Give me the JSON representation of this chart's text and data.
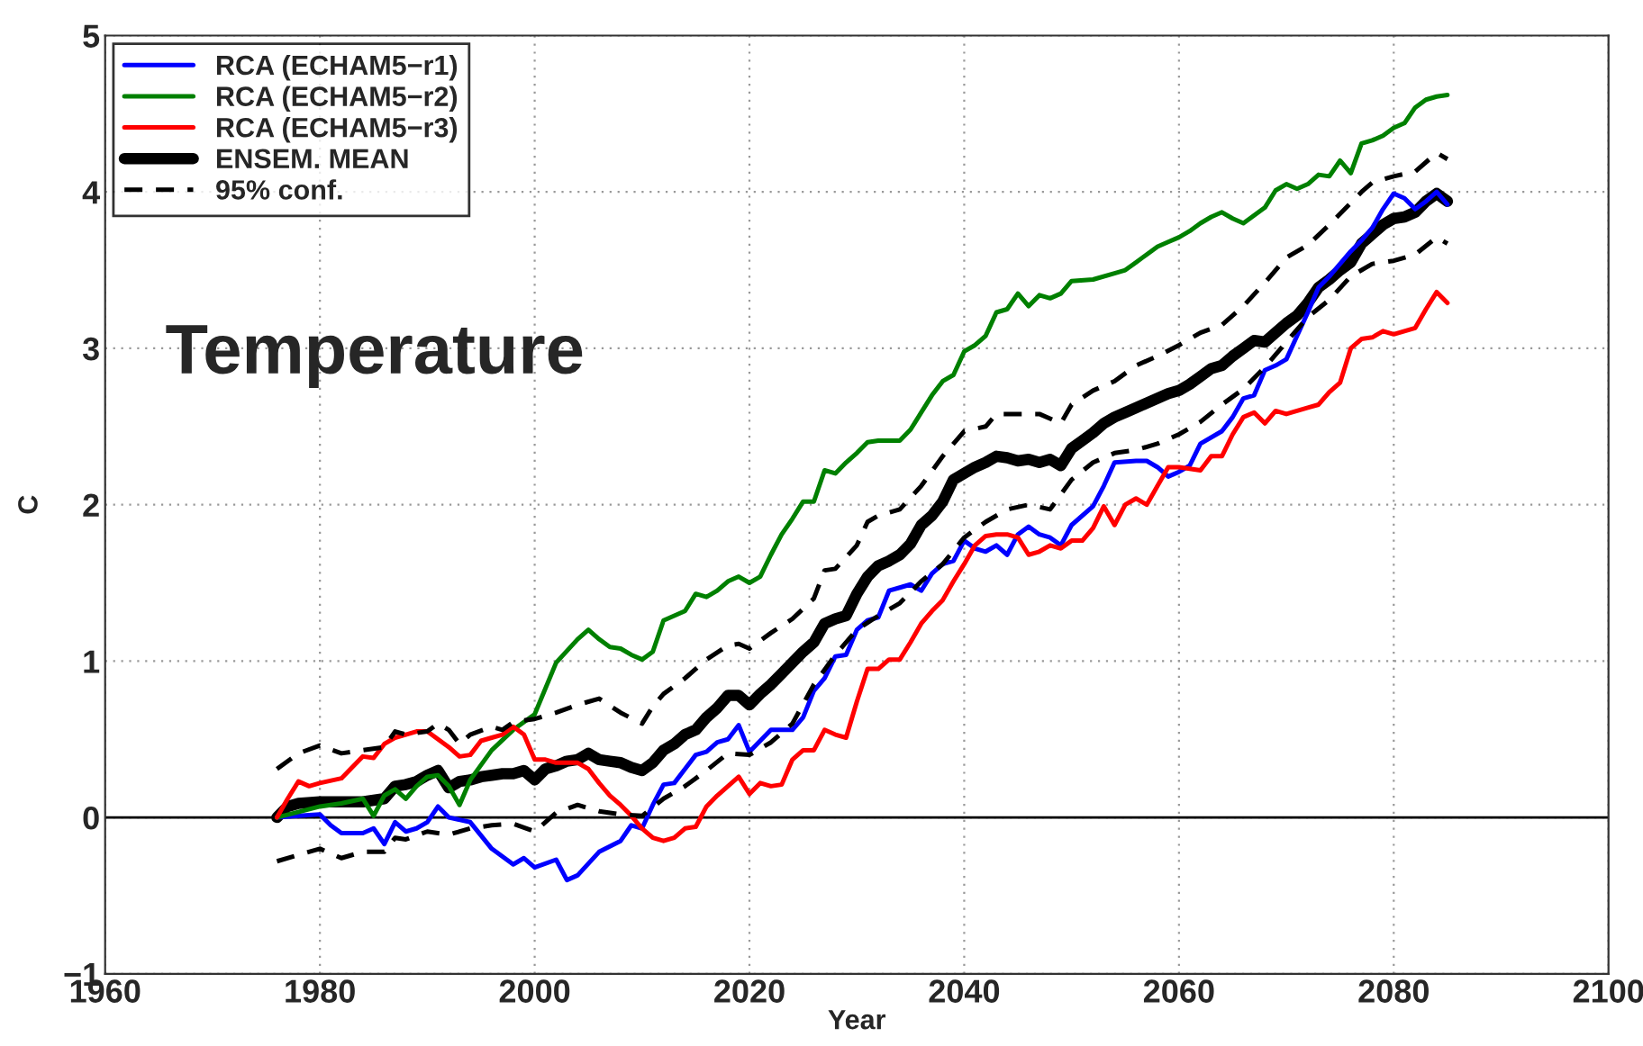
{
  "chart_data": {
    "type": "line",
    "xlabel": "Year",
    "ylabel": "C",
    "annotations": [
      "Temperature"
    ],
    "xlim": [
      1960,
      2100
    ],
    "xticks": [
      1960,
      1980,
      2000,
      2020,
      2040,
      2060,
      2080,
      2100
    ],
    "ylim": [
      -1,
      5
    ],
    "yticks": [
      -1,
      0,
      1,
      2,
      3,
      4,
      5
    ],
    "grid": true,
    "legend": "top left",
    "line_style": "solid",
    "marker": "none",
    "ref_lines": [
      {
        "axis": "y",
        "value": 0,
        "color": "#000000",
        "line_style": "solid"
      }
    ],
    "series": [
      {
        "name": "RCA (ECHAM5−r1)",
        "color": "#0000ff",
        "x": [
          1976,
          1978,
          1980,
          1981,
          1982,
          1984,
          1985,
          1986,
          1987,
          1988,
          1989,
          1990,
          1991,
          1992,
          1994,
          1996,
          1998,
          1999,
          2000,
          2002,
          2003,
          2004,
          2006,
          2008,
          2009,
          2010,
          2011,
          2012,
          2013,
          2014,
          2015,
          2016,
          2017,
          2018,
          2019,
          2020,
          2021,
          2022,
          2024,
          2025,
          2026,
          2027,
          2028,
          2029,
          2030,
          2031,
          2032,
          2033,
          2034,
          2035,
          2036,
          2037,
          2038,
          2039,
          2040,
          2041,
          2042,
          2043,
          2044,
          2045,
          2046,
          2047,
          2048,
          2049,
          2050,
          2052,
          2053,
          2054,
          2056,
          2057,
          2058,
          2059,
          2060,
          2061,
          2062,
          2064,
          2065,
          2066,
          2067,
          2068,
          2069,
          2070,
          2071,
          2072,
          2073,
          2074,
          2075,
          2076,
          2077,
          2078,
          2079,
          2080,
          2081,
          2082,
          2083,
          2084,
          2085
        ],
        "values": [
          0,
          0.01,
          0.02,
          -0.05,
          -0.1,
          -0.1,
          -0.07,
          -0.17,
          -0.03,
          -0.09,
          -0.07,
          -0.03,
          0.07,
          0,
          -0.03,
          -0.2,
          -0.3,
          -0.26,
          -0.32,
          -0.27,
          -0.4,
          -0.37,
          -0.22,
          -0.15,
          -0.05,
          -0.07,
          0.08,
          0.21,
          0.22,
          0.31,
          0.4,
          0.42,
          0.48,
          0.5,
          0.59,
          0.42,
          0.49,
          0.56,
          0.56,
          0.64,
          0.81,
          0.89,
          1.03,
          1.04,
          1.2,
          1.26,
          1.28,
          1.45,
          1.47,
          1.49,
          1.45,
          1.56,
          1.62,
          1.64,
          1.77,
          1.72,
          1.7,
          1.74,
          1.68,
          1.81,
          1.86,
          1.81,
          1.79,
          1.74,
          1.87,
          1.99,
          2.12,
          2.27,
          2.28,
          2.28,
          2.24,
          2.18,
          2.21,
          2.25,
          2.39,
          2.47,
          2.56,
          2.68,
          2.7,
          2.86,
          2.89,
          2.93,
          3.08,
          3.23,
          3.39,
          3.46,
          3.54,
          3.62,
          3.69,
          3.77,
          3.89,
          3.99,
          3.96,
          3.89,
          3.94,
          4.0,
          3.92
        ]
      },
      {
        "name": "RCA (ECHAM5−r2)",
        "color": "#008000",
        "x": [
          1976,
          1980,
          1982,
          1984,
          1985,
          1986,
          1987,
          1988,
          1989,
          1990,
          1991,
          1992,
          1993,
          1994,
          1996,
          1998,
          2000,
          2002,
          2004,
          2005,
          2006,
          2007,
          2008,
          2009,
          2010,
          2011,
          2012,
          2013,
          2014,
          2015,
          2016,
          2017,
          2018,
          2019,
          2020,
          2021,
          2022,
          2023,
          2024,
          2025,
          2026,
          2027,
          2028,
          2029,
          2030,
          2031,
          2032,
          2033,
          2034,
          2035,
          2036,
          2037,
          2038,
          2039,
          2040,
          2041,
          2042,
          2043,
          2044,
          2045,
          2046,
          2047,
          2048,
          2049,
          2050,
          2052,
          2054,
          2055,
          2056,
          2057,
          2058,
          2059,
          2060,
          2061,
          2062,
          2063,
          2064,
          2065,
          2066,
          2067,
          2068,
          2069,
          2070,
          2071,
          2072,
          2073,
          2074,
          2075,
          2076,
          2077,
          2078,
          2079,
          2080,
          2081,
          2082,
          2083,
          2084,
          2085
        ],
        "values": [
          0,
          0.07,
          0.09,
          0.12,
          0.01,
          0.14,
          0.18,
          0.12,
          0.2,
          0.26,
          0.27,
          0.2,
          0.08,
          0.24,
          0.43,
          0.56,
          0.66,
          0.99,
          1.14,
          1.2,
          1.14,
          1.09,
          1.08,
          1.04,
          1.01,
          1.06,
          1.26,
          1.29,
          1.32,
          1.43,
          1.41,
          1.45,
          1.51,
          1.54,
          1.5,
          1.54,
          1.68,
          1.81,
          1.91,
          2.02,
          2.02,
          2.22,
          2.2,
          2.27,
          2.33,
          2.4,
          2.41,
          2.41,
          2.41,
          2.48,
          2.59,
          2.7,
          2.79,
          2.83,
          2.98,
          3.02,
          3.08,
          3.23,
          3.25,
          3.35,
          3.27,
          3.34,
          3.32,
          3.35,
          3.43,
          3.44,
          3.48,
          3.5,
          3.55,
          3.6,
          3.65,
          3.68,
          3.71,
          3.75,
          3.8,
          3.84,
          3.87,
          3.83,
          3.8,
          3.85,
          3.9,
          4.01,
          4.05,
          4.02,
          4.05,
          4.11,
          4.1,
          4.2,
          4.12,
          4.31,
          4.33,
          4.36,
          4.41,
          4.44,
          4.54,
          4.59,
          4.61,
          4.62
        ]
      },
      {
        "name": "RCA (ECHAM5−r3)",
        "color": "#ff0000",
        "x": [
          1976,
          1977,
          1978,
          1979,
          1980,
          1982,
          1984,
          1985,
          1986,
          1987,
          1988,
          1989,
          1990,
          1991,
          1992,
          1993,
          1994,
          1995,
          1996,
          1997,
          1998,
          1999,
          2000,
          2001,
          2002,
          2003,
          2004,
          2005,
          2006,
          2007,
          2008,
          2009,
          2010,
          2011,
          2012,
          2013,
          2014,
          2015,
          2016,
          2017,
          2018,
          2019,
          2020,
          2021,
          2022,
          2023,
          2024,
          2025,
          2026,
          2027,
          2028,
          2029,
          2030,
          2031,
          2032,
          2033,
          2034,
          2035,
          2036,
          2037,
          2038,
          2039,
          2040,
          2041,
          2042,
          2043,
          2044,
          2045,
          2046,
          2047,
          2048,
          2049,
          2050,
          2051,
          2052,
          2053,
          2054,
          2055,
          2056,
          2057,
          2058,
          2059,
          2060,
          2061,
          2062,
          2063,
          2064,
          2065,
          2066,
          2067,
          2068,
          2069,
          2070,
          2071,
          2072,
          2073,
          2074,
          2075,
          2076,
          2077,
          2078,
          2079,
          2080,
          2081,
          2082,
          2083,
          2084,
          2085
        ],
        "values": [
          0,
          0.12,
          0.23,
          0.2,
          0.22,
          0.25,
          0.39,
          0.38,
          0.47,
          0.51,
          0.53,
          0.55,
          0.55,
          0.5,
          0.45,
          0.39,
          0.4,
          0.49,
          0.51,
          0.53,
          0.58,
          0.53,
          0.37,
          0.37,
          0.35,
          0.35,
          0.35,
          0.31,
          0.22,
          0.14,
          0.08,
          0.01,
          -0.07,
          -0.13,
          -0.15,
          -0.13,
          -0.07,
          -0.06,
          0.07,
          0.14,
          0.2,
          0.26,
          0.15,
          0.22,
          0.2,
          0.21,
          0.37,
          0.43,
          0.43,
          0.56,
          0.53,
          0.51,
          0.74,
          0.95,
          0.95,
          1.01,
          1.01,
          1.12,
          1.24,
          1.32,
          1.39,
          1.51,
          1.62,
          1.74,
          1.8,
          1.81,
          1.81,
          1.79,
          1.68,
          1.7,
          1.74,
          1.72,
          1.77,
          1.77,
          1.85,
          1.99,
          1.87,
          2.0,
          2.04,
          2.0,
          2.12,
          2.24,
          2.24,
          2.23,
          2.22,
          2.31,
          2.31,
          2.45,
          2.56,
          2.59,
          2.52,
          2.6,
          2.58,
          2.6,
          2.62,
          2.64,
          2.72,
          2.78,
          3.0,
          3.06,
          3.07,
          3.11,
          3.09,
          3.11,
          3.13,
          3.25,
          3.36,
          3.29
        ]
      },
      {
        "name": "ENSEM. MEAN",
        "color": "#000000",
        "x": [
          1976,
          1977,
          1978,
          1980,
          1982,
          1984,
          1986,
          1987,
          1988,
          1989,
          1990,
          1991,
          1992,
          1993,
          1994,
          1995,
          1996,
          1997,
          1998,
          1999,
          2000,
          2001,
          2002,
          2003,
          2004,
          2005,
          2006,
          2007,
          2008,
          2009,
          2010,
          2011,
          2012,
          2013,
          2014,
          2015,
          2016,
          2017,
          2018,
          2019,
          2020,
          2021,
          2022,
          2023,
          2024,
          2025,
          2026,
          2027,
          2028,
          2029,
          2030,
          2031,
          2032,
          2033,
          2034,
          2035,
          2036,
          2037,
          2038,
          2039,
          2040,
          2041,
          2042,
          2043,
          2044,
          2045,
          2046,
          2047,
          2048,
          2049,
          2050,
          2051,
          2052,
          2053,
          2054,
          2055,
          2056,
          2057,
          2058,
          2059,
          2060,
          2061,
          2062,
          2063,
          2064,
          2065,
          2066,
          2067,
          2068,
          2069,
          2070,
          2071,
          2072,
          2073,
          2074,
          2075,
          2076,
          2077,
          2078,
          2079,
          2080,
          2081,
          2082,
          2083,
          2084,
          2085
        ],
        "values": [
          0,
          0.07,
          0.09,
          0.1,
          0.1,
          0.1,
          0.12,
          0.2,
          0.21,
          0.23,
          0.27,
          0.3,
          0.19,
          0.23,
          0.24,
          0.26,
          0.27,
          0.28,
          0.28,
          0.3,
          0.24,
          0.31,
          0.33,
          0.36,
          0.37,
          0.41,
          0.37,
          0.36,
          0.35,
          0.32,
          0.3,
          0.35,
          0.43,
          0.47,
          0.53,
          0.56,
          0.64,
          0.7,
          0.78,
          0.78,
          0.72,
          0.79,
          0.85,
          0.92,
          0.99,
          1.06,
          1.12,
          1.24,
          1.27,
          1.29,
          1.43,
          1.54,
          1.61,
          1.64,
          1.68,
          1.75,
          1.87,
          1.93,
          2.02,
          2.16,
          2.2,
          2.24,
          2.27,
          2.31,
          2.3,
          2.28,
          2.29,
          2.27,
          2.29,
          2.25,
          2.36,
          2.41,
          2.46,
          2.52,
          2.56,
          2.59,
          2.62,
          2.65,
          2.68,
          2.71,
          2.73,
          2.77,
          2.82,
          2.87,
          2.89,
          2.95,
          3.0,
          3.05,
          3.04,
          3.1,
          3.16,
          3.21,
          3.29,
          3.39,
          3.44,
          3.5,
          3.55,
          3.67,
          3.73,
          3.79,
          3.83,
          3.84,
          3.87,
          3.94,
          3.99,
          3.94
        ]
      },
      {
        "name": "95% conf.",
        "color": "#000000",
        "line_style": "dashed",
        "x": [
          1976,
          1978,
          1980,
          1982,
          1984,
          1986,
          1987,
          1988,
          1990,
          1991,
          1992,
          1993,
          1994,
          1996,
          1997,
          1998,
          2000,
          2002,
          2004,
          2006,
          2008,
          2010,
          2011,
          2012,
          2014,
          2016,
          2018,
          2019,
          2020,
          2022,
          2024,
          2026,
          2027,
          2028,
          2030,
          2031,
          2032,
          2034,
          2036,
          2038,
          2040,
          2042,
          2043,
          2045,
          2047,
          2049,
          2050,
          2052,
          2054,
          2056,
          2058,
          2060,
          2062,
          2064,
          2066,
          2068,
          2070,
          2072,
          2074,
          2076,
          2077,
          2078,
          2080,
          2082,
          2084,
          2085
        ],
        "values": [
          0.31,
          0.41,
          0.46,
          0.41,
          0.43,
          0.45,
          0.55,
          0.53,
          0.55,
          0.6,
          0.56,
          0.47,
          0.53,
          0.58,
          0.56,
          0.61,
          0.63,
          0.67,
          0.72,
          0.76,
          0.67,
          0.6,
          0.71,
          0.79,
          0.89,
          1.01,
          1.1,
          1.11,
          1.08,
          1.18,
          1.27,
          1.4,
          1.58,
          1.59,
          1.74,
          1.89,
          1.93,
          1.97,
          2.12,
          2.31,
          2.47,
          2.5,
          2.58,
          2.58,
          2.58,
          2.52,
          2.64,
          2.73,
          2.79,
          2.89,
          2.95,
          3.02,
          3.1,
          3.15,
          3.27,
          3.42,
          3.58,
          3.66,
          3.79,
          3.93,
          4.0,
          4.06,
          4.1,
          4.13,
          4.25,
          4.21
        ]
      },
      {
        "color": "#000000",
        "line_style": "dashed",
        "x": [
          1976,
          1978,
          1980,
          1982,
          1984,
          1986,
          1987,
          1988,
          1990,
          1992,
          1994,
          1996,
          1998,
          2000,
          2002,
          2004,
          2006,
          2008,
          2010,
          2012,
          2014,
          2016,
          2018,
          2020,
          2022,
          2024,
          2026,
          2028,
          2030,
          2032,
          2034,
          2036,
          2038,
          2040,
          2042,
          2044,
          2046,
          2048,
          2050,
          2052,
          2054,
          2056,
          2058,
          2060,
          2062,
          2064,
          2066,
          2068,
          2070,
          2072,
          2074,
          2076,
          2078,
          2080,
          2082,
          2084,
          2085
        ],
        "values": [
          -0.28,
          -0.24,
          -0.2,
          -0.26,
          -0.22,
          -0.22,
          -0.13,
          -0.14,
          -0.09,
          -0.11,
          -0.07,
          -0.05,
          -0.04,
          -0.09,
          0.03,
          0.08,
          0.04,
          0.02,
          0.01,
          0.12,
          0.2,
          0.3,
          0.41,
          0.4,
          0.48,
          0.6,
          0.85,
          1.04,
          1.2,
          1.29,
          1.37,
          1.51,
          1.62,
          1.79,
          1.89,
          1.97,
          2.0,
          1.97,
          2.16,
          2.27,
          2.33,
          2.35,
          2.39,
          2.45,
          2.53,
          2.64,
          2.74,
          2.88,
          3.04,
          3.2,
          3.31,
          3.46,
          3.54,
          3.56,
          3.6,
          3.71,
          3.67
        ]
      }
    ]
  }
}
